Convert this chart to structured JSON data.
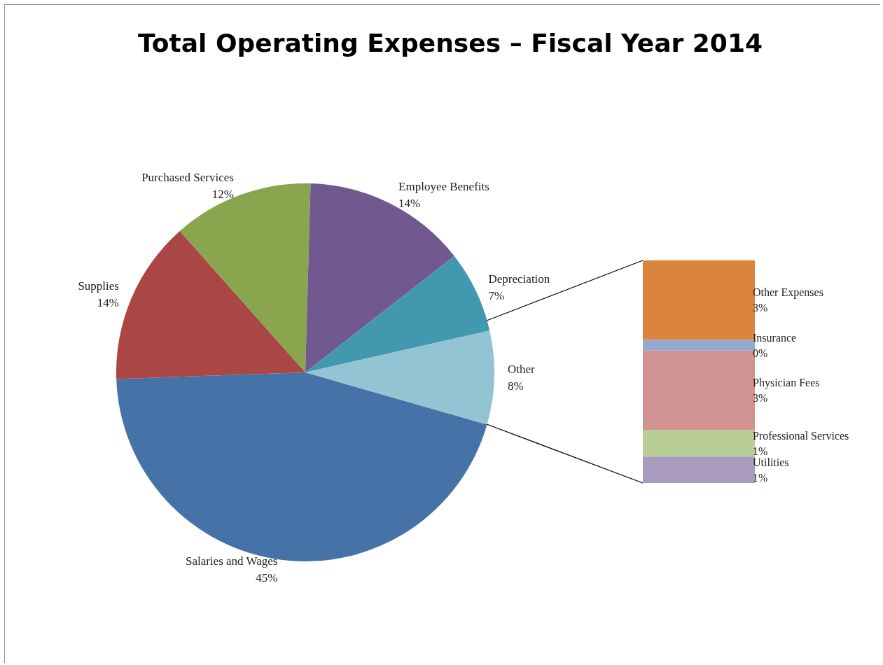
{
  "chart_data": [
    {
      "type": "pie",
      "title": "Total Operating Expenses – Fiscal Year 2014",
      "categories": [
        "Salaries and Wages",
        "Supplies",
        "Purchased Services",
        "Employee Benefits",
        "Depreciation",
        "Other"
      ],
      "values": [
        45,
        14,
        12,
        14,
        7,
        8
      ],
      "value_labels": [
        "45%",
        "14%",
        "12%",
        "14%",
        "7%",
        "8%"
      ],
      "colors": [
        "#4573a7",
        "#aa4644",
        "#89a54e",
        "#71588f",
        "#4298af",
        "#93c4d4"
      ],
      "legend": false
    },
    {
      "type": "bar",
      "stacked": true,
      "categories": [
        null
      ],
      "legend": false,
      "series": [
        {
          "name": "Utilities",
          "color": "#a99bbd",
          "values": [
            1
          ],
          "value_labels": [
            "1%"
          ]
        },
        {
          "name": "Professional Services",
          "color": "#b9cd96",
          "values": [
            1
          ],
          "value_labels": [
            "1%"
          ]
        },
        {
          "name": "Physician Fees",
          "color": "#d19392",
          "values": [
            3
          ],
          "value_labels": [
            "3%"
          ]
        },
        {
          "name": "Insurance",
          "color": "#93a9cf",
          "values": [
            0.4
          ],
          "value_labels": [
            "0%"
          ]
        },
        {
          "name": "Other Expenses",
          "color": "#db843d",
          "values": [
            3
          ],
          "value_labels": [
            "3%"
          ]
        }
      ]
    }
  ]
}
